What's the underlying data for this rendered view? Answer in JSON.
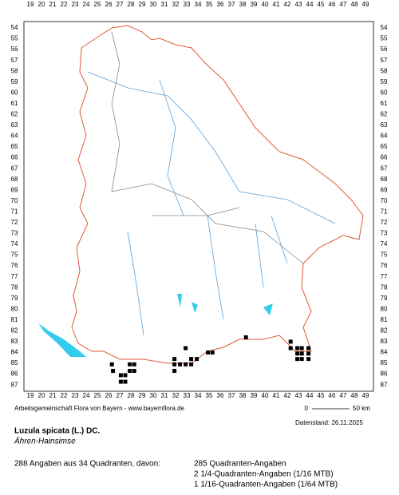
{
  "map": {
    "title": "Luzula spicata (L.) DC.",
    "subtitle": "Ähren-Hainsimse",
    "credit": "Arbeitsgemeinschaft Flora von Bayern - www.bayernflora.de",
    "date": "Datenstand: 26.11.2025",
    "scale_start": "0",
    "scale_end": "50 km",
    "columns": [
      19,
      20,
      21,
      22,
      23,
      24,
      25,
      26,
      27,
      28,
      29,
      30,
      31,
      32,
      33,
      34,
      35,
      36,
      37,
      38,
      39,
      40,
      41,
      42,
      43,
      44,
      45,
      46,
      47,
      48,
      49
    ],
    "rows": [
      54,
      55,
      56,
      57,
      58,
      59,
      60,
      61,
      62,
      63,
      64,
      65,
      66,
      67,
      68,
      69,
      70,
      71,
      72,
      73,
      74,
      75,
      76,
      77,
      78,
      79,
      80,
      81,
      82,
      83,
      84,
      85,
      86,
      87
    ],
    "occurrences": [
      [
        26.3,
        85.1
      ],
      [
        26.4,
        85.7
      ],
      [
        27.1,
        86.1
      ],
      [
        27.5,
        86.1
      ],
      [
        27.1,
        86.7
      ],
      [
        27.5,
        86.7
      ],
      [
        27.9,
        85.1
      ],
      [
        28.3,
        85.1
      ],
      [
        27.9,
        85.7
      ],
      [
        28.3,
        85.7
      ],
      [
        31.9,
        84.6
      ],
      [
        31.9,
        85.1
      ],
      [
        31.9,
        85.7
      ],
      [
        32.4,
        85.1
      ],
      [
        32.9,
        85.1
      ],
      [
        32.9,
        83.6
      ],
      [
        33.4,
        85.1
      ],
      [
        33.4,
        84.6
      ],
      [
        33.9,
        84.6
      ],
      [
        34.9,
        84.0
      ],
      [
        35.3,
        84.0
      ],
      [
        38.3,
        82.6
      ],
      [
        42.3,
        83.0
      ],
      [
        42.3,
        83.6
      ],
      [
        42.9,
        83.6
      ],
      [
        43.3,
        83.6
      ],
      [
        43.9,
        83.6
      ],
      [
        42.9,
        84.1
      ],
      [
        43.3,
        84.1
      ],
      [
        43.9,
        84.1
      ],
      [
        42.9,
        84.6
      ],
      [
        43.3,
        84.6
      ],
      [
        43.9,
        84.6
      ]
    ],
    "summary": "288 Angaben aus 34 Quadranten, davon:",
    "counts": [
      "285 Quadranten-Angaben",
      "2 1/4-Quadranten-Angaben (1/16 MTB)",
      "1 1/16-Quadranten-Angaben (1/64 MTB)"
    ]
  }
}
